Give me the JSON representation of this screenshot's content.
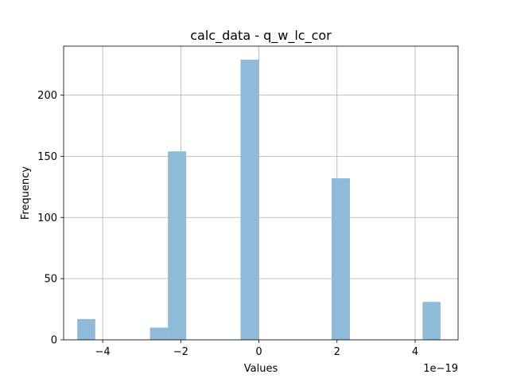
{
  "chart_data": {
    "type": "bar",
    "title": "calc_data - q_w_lc_cor",
    "xlabel": "Values",
    "ylabel": "Frequency",
    "x_offset_text": "1e−19",
    "x_scale_factor": 1e-19,
    "xlim": [
      -5.0,
      5.1
    ],
    "ylim": [
      0,
      240
    ],
    "x_ticks": [
      -4,
      -2,
      0,
      2,
      4
    ],
    "x_tick_labels": [
      "−4",
      "−2",
      "0",
      "2",
      "4"
    ],
    "y_ticks": [
      0,
      50,
      100,
      150,
      200
    ],
    "y_tick_labels": [
      "0",
      "50",
      "100",
      "150",
      "200"
    ],
    "grid": true,
    "bar_color": "#8fbad8",
    "bins": [
      {
        "x0": -4.65,
        "x1": -4.19,
        "count": 17
      },
      {
        "x0": -2.79,
        "x1": -2.33,
        "count": 10
      },
      {
        "x0": -2.33,
        "x1": -1.86,
        "count": 154
      },
      {
        "x0": -0.47,
        "x1": 0.0,
        "count": 229
      },
      {
        "x0": 1.86,
        "x1": 2.33,
        "count": 132
      },
      {
        "x0": 4.19,
        "x1": 4.65,
        "count": 31
      }
    ]
  }
}
